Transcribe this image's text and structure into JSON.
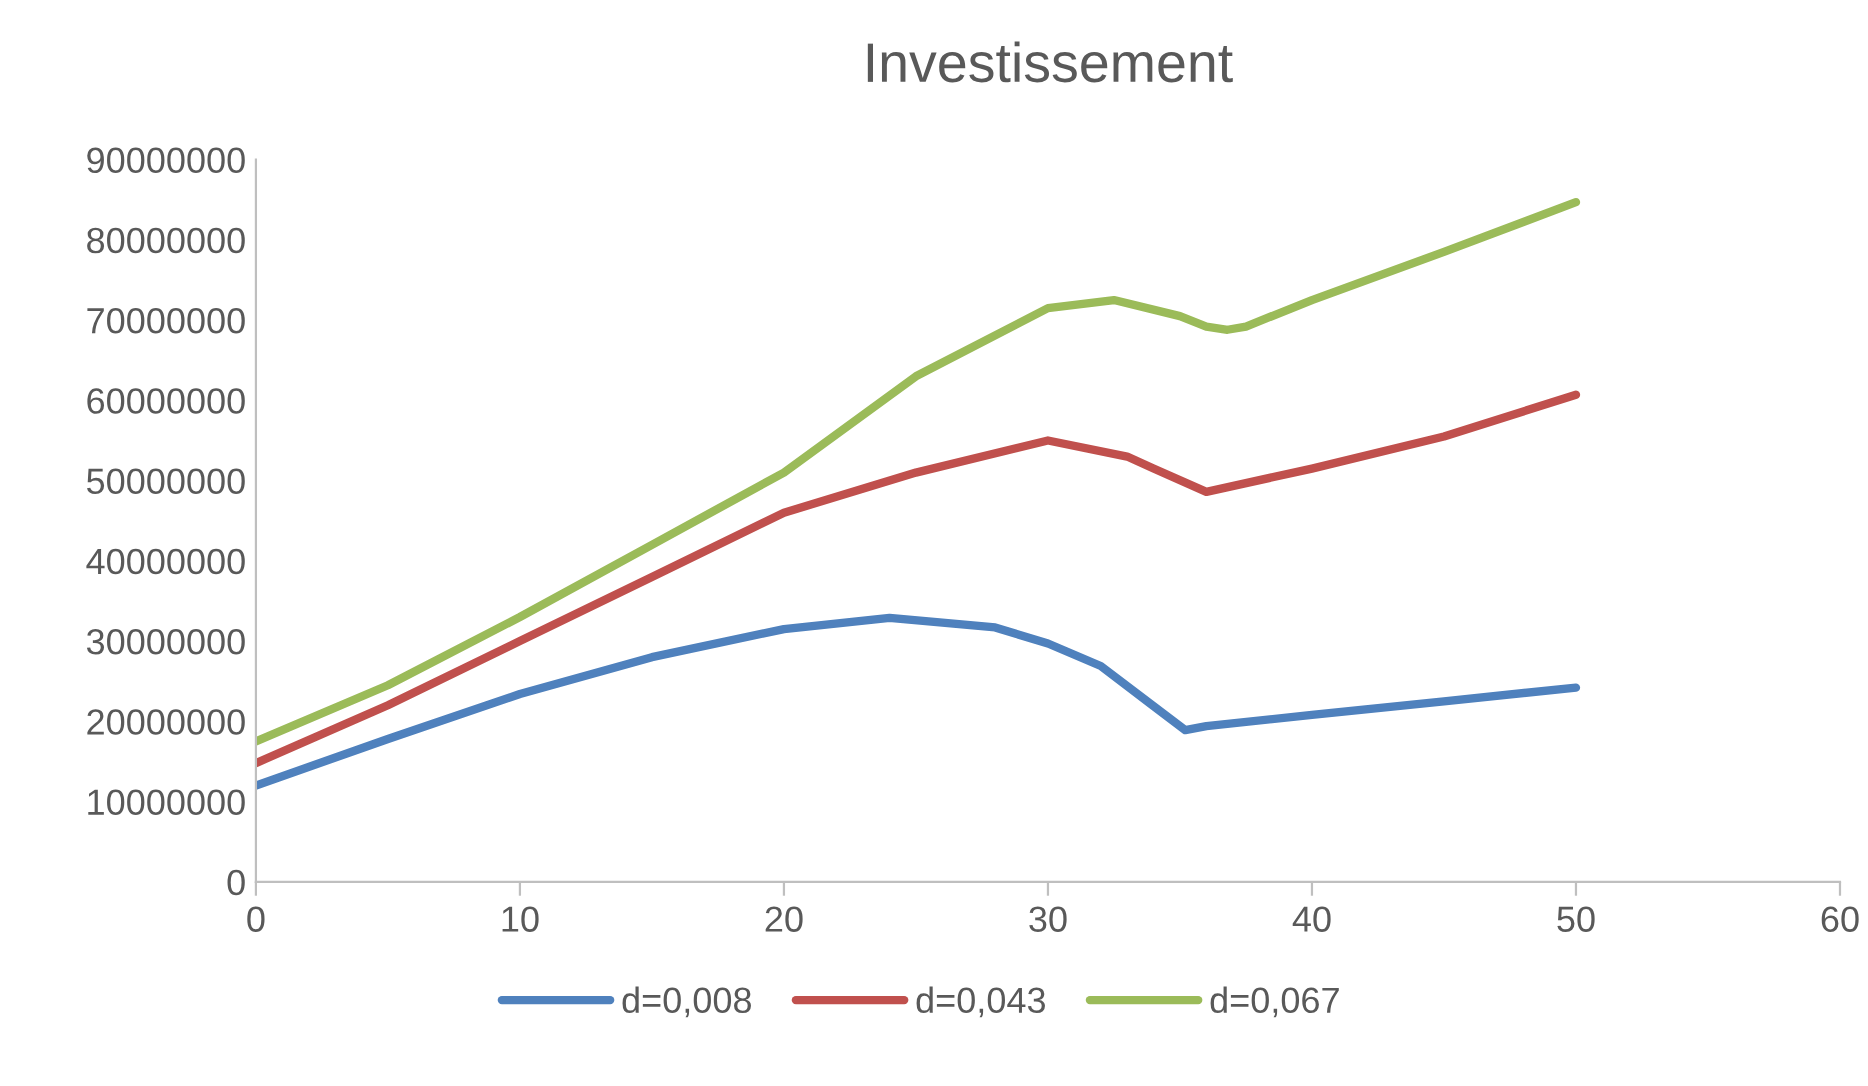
{
  "chart_data": {
    "type": "line",
    "title": "Investissement",
    "xlim": [
      0,
      60
    ],
    "xticks": [
      0,
      10,
      20,
      30,
      40,
      50,
      60
    ],
    "ylim": [
      0,
      90000000
    ],
    "yticks": [
      0,
      10000000,
      20000000,
      30000000,
      40000000,
      50000000,
      60000000,
      70000000,
      80000000,
      90000000
    ],
    "grid": false,
    "legend": "bottom",
    "marker": "none",
    "line_style": "solid",
    "series": [
      {
        "name": "d=0,008",
        "color": "#4f81bd",
        "x": [
          0,
          5,
          10,
          15,
          20,
          24,
          28,
          30,
          32,
          34,
          35.2,
          36,
          40,
          45,
          50
        ],
        "values": [
          12000000,
          17800000,
          23400000,
          28000000,
          31500000,
          32900000,
          31700000,
          29700000,
          26900000,
          21900000,
          18900000,
          19400000,
          20800000,
          22500000,
          24200000
        ]
      },
      {
        "name": "d=0,043",
        "color": "#c0504d",
        "x": [
          0,
          5,
          10,
          15,
          20,
          25,
          30,
          33,
          34,
          36,
          40,
          45,
          50
        ],
        "values": [
          14800000,
          22000000,
          30000000,
          38000000,
          46000000,
          51000000,
          55000000,
          53000000,
          51500000,
          48600000,
          51500000,
          55500000,
          60700000
        ]
      },
      {
        "name": "d=0,067",
        "color": "#9bbb59",
        "x": [
          0,
          5,
          10,
          15,
          20,
          25,
          30,
          32.5,
          35,
          36,
          36.8,
          37.5,
          40,
          45,
          50
        ],
        "values": [
          17500000,
          24500000,
          33000000,
          42000000,
          51000000,
          63000000,
          71500000,
          72500000,
          70500000,
          69200000,
          68800000,
          69200000,
          72500000,
          78500000,
          84700000
        ]
      }
    ]
  }
}
